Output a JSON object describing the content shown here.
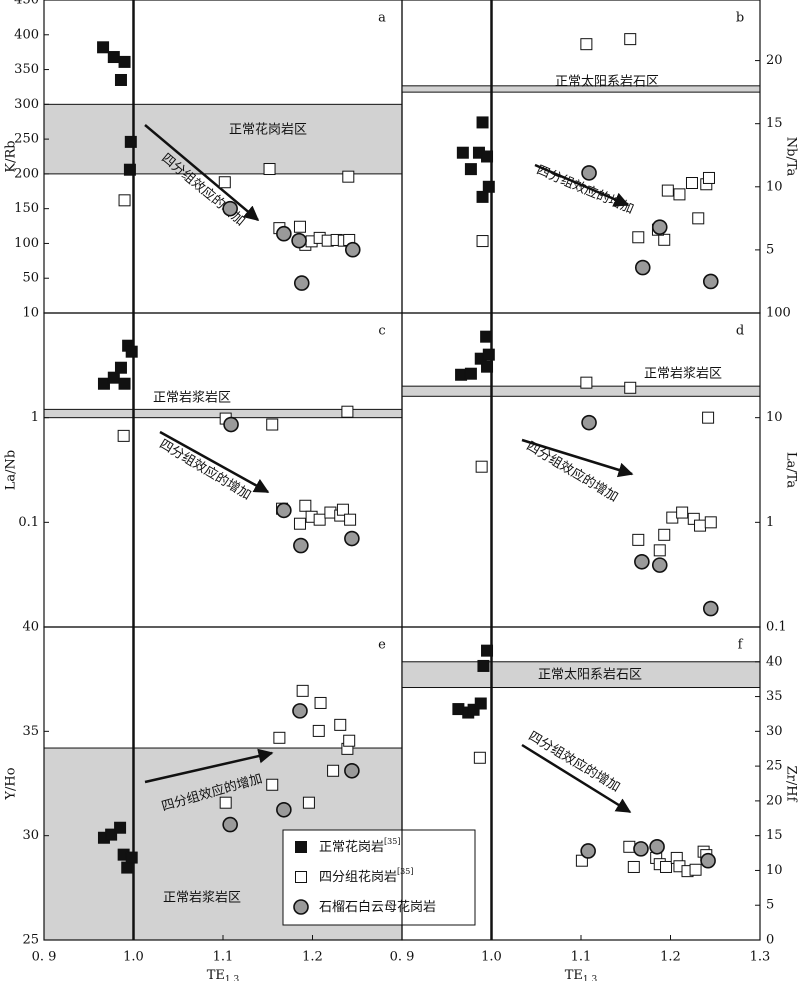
{
  "chart_data": [
    {
      "type": "scatter",
      "panel": "a",
      "ylabel": "K/Rb",
      "yaxis_side": "left",
      "log": false,
      "xlim": [
        0.9,
        1.3
      ],
      "ylim": [
        0,
        450
      ],
      "yticks": [
        50,
        100,
        150,
        200,
        250,
        300,
        350,
        400,
        450
      ],
      "vline": 1.0,
      "band": [
        200,
        300
      ],
      "band_label": "正常花岗岩区",
      "annotation": "四分组效应的增加",
      "series": [
        {
          "marker": "filled-square",
          "color": "#111111",
          "x": [
            0.966,
            0.978,
            0.99,
            0.986,
            0.997,
            0.996
          ],
          "values": [
            382,
            368,
            361,
            335,
            246,
            206
          ]
        },
        {
          "marker": "open-square",
          "color": "#ffffff",
          "x": [
            0.99,
            1.102,
            1.152,
            1.163,
            1.186,
            1.192,
            1.199,
            1.208,
            1.217,
            1.227,
            1.235,
            1.241,
            1.24
          ],
          "values": [
            162,
            188,
            207,
            122,
            124,
            98,
            103,
            108,
            104,
            105,
            104,
            105,
            196
          ]
        },
        {
          "marker": "circle",
          "color": "#9a9a9a",
          "x": [
            1.108,
            1.168,
            1.185,
            1.245,
            1.188
          ],
          "values": [
            150,
            114,
            104,
            91,
            43
          ]
        }
      ]
    },
    {
      "type": "scatter",
      "panel": "b",
      "ylabel": "Nb/Ta",
      "yaxis_side": "right",
      "log": false,
      "xlim": [
        0.9,
        1.3
      ],
      "ylim": [
        0,
        24.8
      ],
      "yticks": [
        5,
        10,
        15,
        20
      ],
      "vline": 1.0,
      "band": [
        17.5,
        18
      ],
      "band_label": "正常太阳系岩石区",
      "annotation": "四分组效应的增加",
      "series": [
        {
          "marker": "filled-square",
          "color": "#111111",
          "x": [
            0.99,
            0.968,
            0.986,
            0.995,
            0.977,
            0.99,
            0.997
          ],
          "values": [
            15.1,
            12.7,
            12.7,
            12.4,
            11.4,
            9.2,
            10.0
          ]
        },
        {
          "marker": "open-square",
          "color": "#ffffff",
          "x": [
            1.106,
            1.155,
            0.99,
            1.164,
            1.193,
            1.186,
            1.197,
            1.21,
            1.224,
            1.231,
            1.24,
            1.243
          ],
          "values": [
            21.3,
            21.7,
            5.7,
            6.0,
            5.8,
            6.6,
            9.7,
            9.4,
            10.3,
            7.5,
            10.2,
            10.7
          ]
        },
        {
          "marker": "circle",
          "color": "#9a9a9a",
          "x": [
            1.109,
            1.188,
            1.169,
            1.245
          ],
          "values": [
            11.1,
            6.8,
            3.6,
            2.5
          ]
        }
      ]
    },
    {
      "type": "scatter",
      "panel": "c",
      "ylabel": "La/Nb",
      "yaxis_side": "left",
      "log": true,
      "xlim": [
        0.9,
        1.3
      ],
      "ylim": [
        0.01,
        10
      ],
      "yticks": [
        0.1,
        1,
        10
      ],
      "vline": 1.0,
      "band": [
        1,
        1.2
      ],
      "band_label": "正常岩浆岩区",
      "annotation": "四分组效应的增加",
      "series": [
        {
          "marker": "filled-square",
          "color": "#111111",
          "x": [
            0.967,
            0.978,
            0.986,
            0.99,
            0.994,
            0.998
          ],
          "values": [
            2.11,
            2.41,
            3.0,
            2.11,
            4.87,
            4.27
          ]
        },
        {
          "marker": "open-square",
          "color": "#ffffff",
          "x": [
            0.989,
            1.103,
            1.155,
            1.166,
            1.186,
            1.192,
            1.199,
            1.208,
            1.22,
            1.231,
            1.234,
            1.242,
            1.239
          ],
          "values": [
            0.67,
            0.98,
            0.86,
            0.135,
            0.097,
            0.144,
            0.113,
            0.106,
            0.124,
            0.116,
            0.132,
            0.106,
            1.14
          ]
        },
        {
          "marker": "circle",
          "color": "#9a9a9a",
          "x": [
            1.109,
            1.168,
            1.187,
            1.244
          ],
          "values": [
            0.86,
            0.13,
            0.06,
            0.07
          ]
        }
      ]
    },
    {
      "type": "scatter",
      "panel": "d",
      "ylabel": "La/Ta",
      "yaxis_side": "right",
      "log": true,
      "xlim": [
        0.9,
        1.3
      ],
      "ylim": [
        0.1,
        100
      ],
      "yticks": [
        0.1,
        1,
        10,
        100
      ],
      "vline": 1.0,
      "band": [
        16,
        20
      ],
      "band_label": "正常岩浆岩区",
      "annotation": "四分组效应的增加",
      "series": [
        {
          "marker": "filled-square",
          "color": "#111111",
          "x": [
            0.966,
            0.977,
            0.988,
            0.994,
            0.997,
            0.995
          ],
          "values": [
            25.7,
            26.3,
            36.6,
            59.4,
            40,
            30.7
          ]
        },
        {
          "marker": "open-square",
          "color": "#ffffff",
          "x": [
            1.106,
            1.155,
            0.989,
            1.164,
            1.188,
            1.193,
            1.202,
            1.213,
            1.226,
            1.233,
            1.245,
            1.242
          ],
          "values": [
            21.6,
            19.3,
            3.4,
            0.68,
            0.54,
            0.76,
            1.11,
            1.24,
            1.08,
            0.93,
            1.0,
            10
          ]
        },
        {
          "marker": "circle",
          "color": "#9a9a9a",
          "x": [
            1.109,
            1.168,
            1.188,
            1.245
          ],
          "values": [
            8.96,
            0.42,
            0.39,
            0.15
          ]
        }
      ]
    },
    {
      "type": "scatter",
      "panel": "e",
      "ylabel": "Y/Ho",
      "yaxis_side": "left",
      "log": false,
      "xlim": [
        0.9,
        1.3
      ],
      "ylim": [
        25,
        40
      ],
      "yticks": [
        25,
        30,
        35,
        40
      ],
      "xticks": [
        {
          "value": 0.9,
          "label": "0. 9"
        },
        {
          "value": 1.0,
          "label": "1.0"
        },
        1.1,
        1.2
      ],
      "xlabel": {
        "main": "TE",
        "sub": "1,3"
      },
      "vline": 1.0,
      "band": [
        25,
        34.2
      ],
      "band_label": "正常岩浆岩区",
      "annotation": "四分组效应的增加",
      "series": [
        {
          "name": "正常花岗岩",
          "name_sup": "[35]",
          "marker": "filled-square",
          "color": "#111111",
          "x": [
            0.967,
            0.975,
            0.985,
            0.989,
            0.993,
            0.998
          ],
          "values": [
            29.9,
            30.05,
            30.38,
            29.09,
            28.47,
            28.95
          ]
        },
        {
          "name": "四分组花岗岩",
          "name_sup": "[35]",
          "marker": "open-square",
          "color": "#ffffff",
          "x": [
            1.103,
            1.155,
            1.163,
            1.189,
            1.209,
            1.207,
            1.196,
            1.223,
            1.231,
            1.239,
            1.241
          ],
          "values": [
            31.58,
            32.44,
            34.69,
            36.94,
            36.36,
            35.02,
            31.58,
            33.11,
            35.31,
            34.16,
            34.55
          ]
        },
        {
          "name": "石榴石白云母花岗岩",
          "marker": "circle",
          "color": "#9a9a9a",
          "x": [
            1.108,
            1.186,
            1.168,
            1.244
          ],
          "values": [
            30.53,
            35.98,
            31.24,
            33.11
          ]
        }
      ]
    },
    {
      "type": "scatter",
      "panel": "f",
      "ylabel": "Zr/Hf",
      "yaxis_side": "right",
      "log": false,
      "xlim": [
        0.9,
        1.3
      ],
      "ylim": [
        0,
        45
      ],
      "yticks": [
        0,
        5,
        10,
        15,
        20,
        25,
        30,
        35,
        40
      ],
      "xticks": [
        {
          "value": 0.9,
          "label": "0. 9"
        },
        {
          "value": 1.0,
          "label": "1.0"
        },
        1.1,
        1.2,
        1.3
      ],
      "xlabel": {
        "main": "TE",
        "sub": "1,3"
      },
      "vline": 1.0,
      "band": [
        36.3,
        40
      ],
      "band_label": "正常太阳系岩石区",
      "annotation": "四分组效应的增加",
      "series": [
        {
          "marker": "filled-square",
          "color": "#111111",
          "x": [
            0.995,
            0.991,
            0.963,
            0.974,
            0.98,
            0.988
          ],
          "values": [
            41.6,
            39.4,
            33.2,
            32.7,
            33.1,
            34.0
          ]
        },
        {
          "marker": "open-square",
          "color": "#ffffff",
          "x": [
            0.987,
            1.101,
            1.154,
            1.159,
            1.184,
            1.188,
            1.195,
            1.207,
            1.21,
            1.219,
            1.228,
            1.237,
            1.24
          ],
          "values": [
            26.2,
            11.4,
            13.4,
            10.5,
            11.8,
            10.9,
            10.5,
            11.8,
            10.6,
            9.9,
            10.1,
            12.7,
            12.2
          ]
        },
        {
          "marker": "circle",
          "color": "#9a9a9a",
          "x": [
            1.108,
            1.167,
            1.185,
            1.242
          ],
          "values": [
            12.8,
            13.1,
            13.4,
            11.4
          ]
        }
      ]
    }
  ]
}
